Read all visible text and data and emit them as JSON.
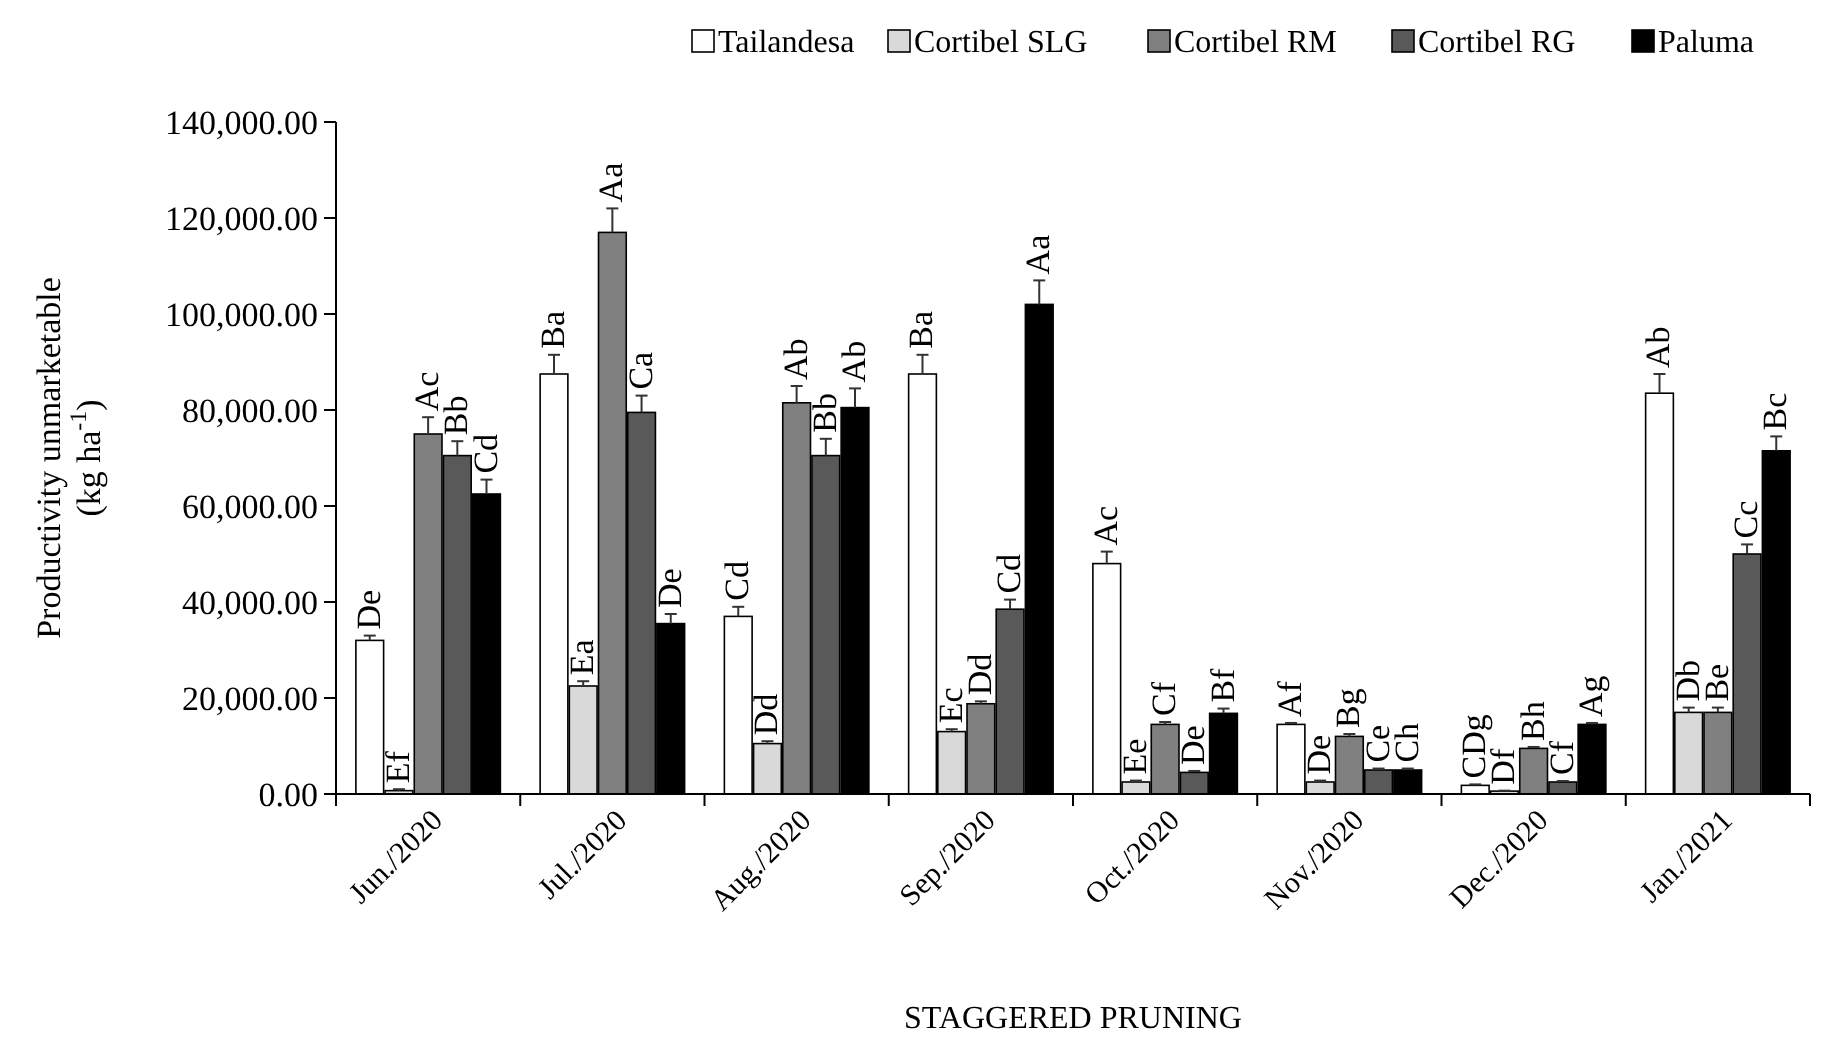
{
  "chart_data": {
    "type": "bar",
    "xlabel": "STAGGERED PRUNING",
    "ylabel": "Productivity  unmarketable\n(kg ha$^{-1}$)",
    "categories": [
      "Jun./2020",
      "Jul./2020",
      "Aug./2020",
      "Sep./2020",
      "Oct./2020",
      "Nov./2020",
      "Dec./2020",
      "Jan./2021"
    ],
    "ylim": [
      0,
      140000
    ],
    "yticks": [
      {
        "value": 0,
        "label": "0.00"
      },
      {
        "value": 20000,
        "label": "20,000.00"
      },
      {
        "value": 40000,
        "label": "40,000.00"
      },
      {
        "value": 60000,
        "label": "60,000.00"
      },
      {
        "value": 80000,
        "label": "80,000.00"
      },
      {
        "value": 100000,
        "label": "100,000.00"
      },
      {
        "value": 120000,
        "label": "120,000.00"
      },
      {
        "value": 140000,
        "label": "140,000.00"
      }
    ],
    "legend": "top",
    "grid": false,
    "series": [
      {
        "name": "Tailandesa",
        "color": "#ffffff",
        "values": [
          32000,
          87500,
          37000,
          87500,
          48000,
          14500,
          1800,
          83500
        ],
        "errors": [
          1000,
          4000,
          2000,
          4000,
          2500,
          300,
          200,
          4000
        ],
        "value_labels": [
          "De",
          "Ba",
          "Cd",
          "Ba",
          "Ac",
          "Af",
          "CDg",
          "Ab"
        ]
      },
      {
        "name": "Cortibel SLG",
        "color": "#d9d9d9",
        "values": [
          700,
          22500,
          10500,
          13000,
          2500,
          2500,
          600,
          17000
        ],
        "errors": [
          300,
          1000,
          500,
          500,
          300,
          300,
          100,
          1000
        ],
        "value_labels": [
          "Ef",
          "Ea",
          "Dd",
          "Ec",
          "Ee",
          "De",
          "Df",
          "Db"
        ]
      },
      {
        "name": "Cortibel RM",
        "color": "#808080",
        "values": [
          75000,
          117000,
          81500,
          18800,
          14500,
          12000,
          9500,
          17000
        ],
        "errors": [
          3500,
          5000,
          3500,
          500,
          500,
          500,
          300,
          1000
        ],
        "value_labels": [
          "Ac",
          "Aa",
          "Ab",
          "Dd",
          "Cf",
          "Bg",
          "Bh",
          "Be"
        ]
      },
      {
        "name": "Cortibel RG",
        "color": "#595959",
        "values": [
          70500,
          79500,
          70500,
          38500,
          4500,
          5000,
          2500,
          50000
        ],
        "errors": [
          3000,
          3500,
          3500,
          2000,
          300,
          300,
          200,
          2000
        ],
        "value_labels": [
          "Bb",
          "Ca",
          "Bb",
          "Cd",
          "De",
          "Ce",
          "Cf",
          "Cc"
        ]
      },
      {
        "name": "Paluma",
        "color": "#000000",
        "values": [
          62500,
          35500,
          80500,
          102000,
          16800,
          5000,
          14500,
          71500
        ],
        "errors": [
          3000,
          2000,
          4000,
          5000,
          1000,
          300,
          300,
          3000
        ],
        "value_labels": [
          "Cd",
          "De",
          "Ab",
          "Aa",
          "Bf",
          "Ch",
          "Ag",
          "Bc"
        ]
      }
    ]
  }
}
